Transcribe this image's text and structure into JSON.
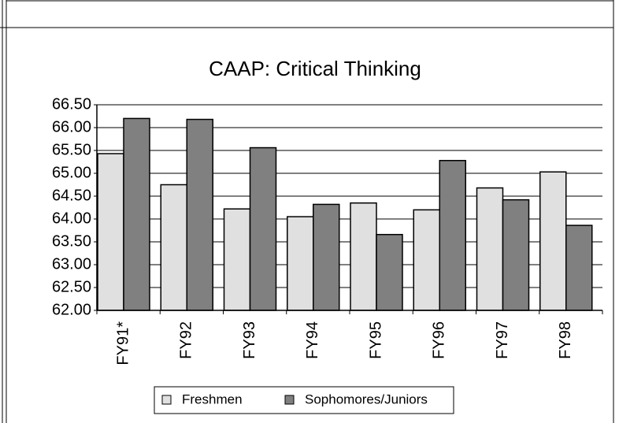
{
  "chart_data": {
    "type": "bar",
    "title": "CAAP: Critical Thinking",
    "categories": [
      "FY91*",
      "FY92",
      "FY93",
      "FY94",
      "FY95",
      "FY96",
      "FY97",
      "FY98"
    ],
    "series": [
      {
        "name": "Freshmen",
        "color": "#e0e0e0",
        "values": [
          65.43,
          64.75,
          64.22,
          64.05,
          64.35,
          64.2,
          64.68,
          65.03
        ]
      },
      {
        "name": "Sophomores/Juniors",
        "color": "#808080",
        "values": [
          66.2,
          66.18,
          65.56,
          64.32,
          63.66,
          65.28,
          64.42,
          63.86
        ]
      }
    ],
    "ylim": [
      62,
      66.5
    ],
    "yticks": [
      {
        "value": 62,
        "label": "62.00"
      },
      {
        "value": 62.5,
        "label": "62.50"
      },
      {
        "value": 63,
        "label": "63.00"
      },
      {
        "value": 63.5,
        "label": "63.50"
      },
      {
        "value": 64,
        "label": "64.00"
      },
      {
        "value": 64.5,
        "label": "64.50"
      },
      {
        "value": 65,
        "label": "65.00"
      },
      {
        "value": 65.5,
        "label": "65.50"
      },
      {
        "value": 66,
        "label": "66.00"
      },
      {
        "value": 66.5,
        "label": "66.50"
      }
    ],
    "grid": true,
    "legend": "bottom"
  }
}
